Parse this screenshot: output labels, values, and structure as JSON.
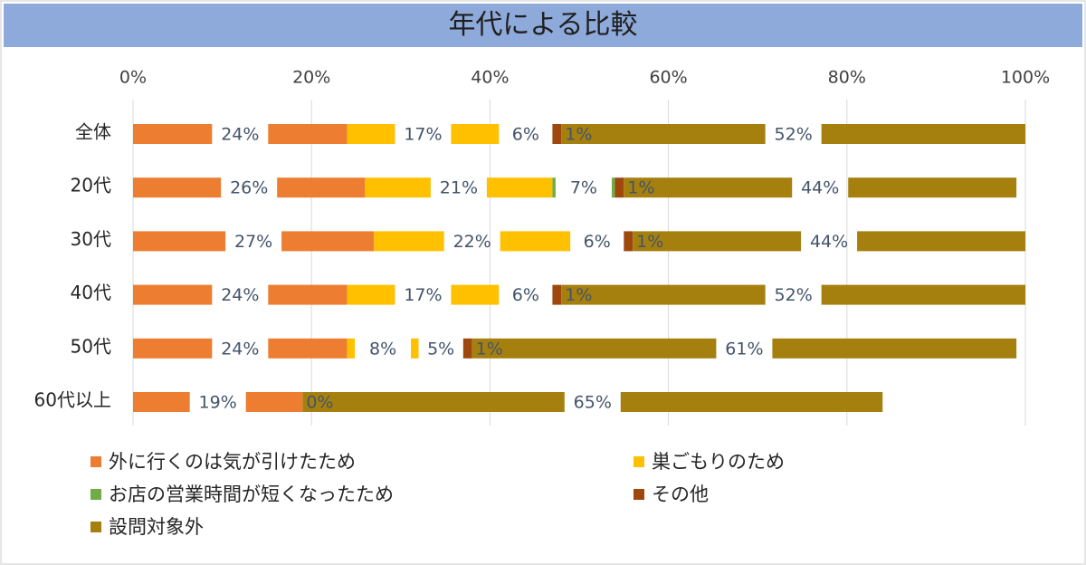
{
  "chart_data": {
    "type": "bar",
    "orientation": "horizontal",
    "stacked": "percent",
    "title": "年代による比較",
    "categories": [
      "全体",
      "20代",
      "30代",
      "40代",
      "50代",
      "60代以上"
    ],
    "series": [
      {
        "name": "外に行くのは気が引けたため",
        "color": "#ed7d31",
        "values": [
          24,
          26,
          27,
          24,
          24,
          19
        ],
        "labels": [
          "24%",
          "26%",
          "27%",
          "24%",
          "24%",
          "19%"
        ]
      },
      {
        "name": "巣ごもりのため",
        "color": "#ffc000",
        "values": [
          17,
          21,
          22,
          17,
          8,
          0
        ],
        "labels": [
          "17%",
          "21%",
          "22%",
          "17%",
          "8%",
          "0%"
        ]
      },
      {
        "name": "お店の営業時間が短くなったため",
        "color": "#70ad47",
        "values": [
          6,
          7,
          6,
          6,
          5,
          0
        ],
        "labels": [
          "6%",
          "7%",
          "6%",
          "6%",
          "5%",
          ""
        ]
      },
      {
        "name": "その他",
        "color": "#9e480e",
        "values": [
          1,
          1,
          1,
          1,
          1,
          0
        ],
        "labels": [
          "1%",
          "1%",
          "1%",
          "1%",
          "1%",
          ""
        ]
      },
      {
        "name": "設問対象外",
        "color": "#a5800f",
        "values": [
          52,
          44,
          44,
          52,
          61,
          65
        ],
        "labels": [
          "52%",
          "44%",
          "44%",
          "52%",
          "61%",
          "65%"
        ]
      }
    ],
    "xlim": [
      0,
      100
    ],
    "xticks": [
      "0%",
      "20%",
      "40%",
      "60%",
      "80%",
      "100%"
    ],
    "axis_position": "top",
    "grid": true,
    "legend_position": "bottom"
  }
}
